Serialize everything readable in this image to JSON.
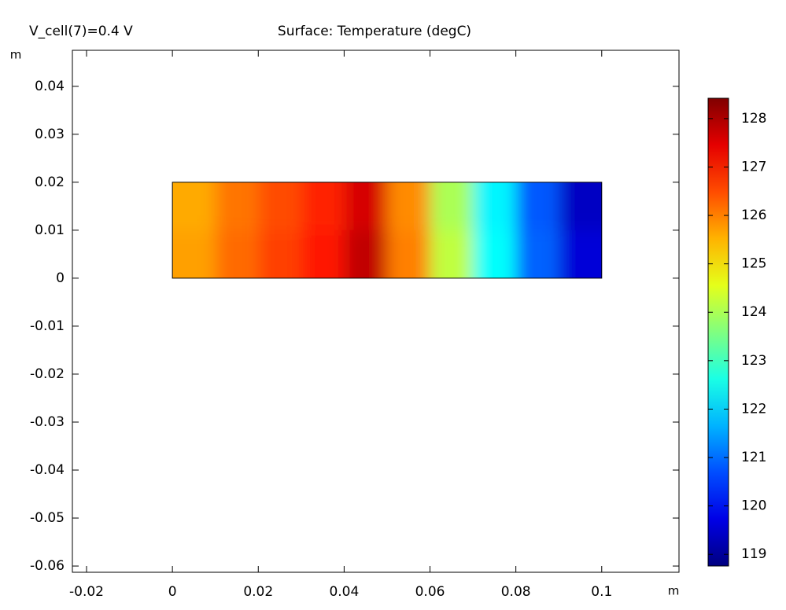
{
  "chart_data": {
    "type": "surface",
    "title": "Surface: Temperature (degC)",
    "subtitle": "V_cell(7)=0.4 V",
    "x_unit": "m",
    "y_unit": "m",
    "xlim": [
      -0.0233,
      0.118
    ],
    "xticks": [
      -0.02,
      0,
      0.02,
      0.04,
      0.06,
      0.08,
      0.1
    ],
    "ylim": [
      -0.0613,
      0.0475
    ],
    "yticks": [
      0.04,
      0.03,
      0.02,
      0.01,
      0,
      -0.01,
      -0.02,
      -0.03,
      -0.04,
      -0.05,
      -0.06
    ],
    "clim": [
      118.76,
      128.42
    ],
    "cticks": [
      119,
      120,
      121,
      122,
      123,
      124,
      125,
      126,
      127,
      128
    ],
    "domain": {
      "x": [
        0,
        0.1
      ],
      "y": [
        0,
        0.02
      ]
    },
    "surface": {
      "x": [
        0.005,
        0.015,
        0.025,
        0.035,
        0.045,
        0.055,
        0.065,
        0.075,
        0.085,
        0.095
      ],
      "y": [
        0.015,
        0.005
      ],
      "values": [
        [
          125.6,
          126.1,
          126.5,
          126.9,
          127.6,
          125.9,
          124.0,
          122.3,
          120.8,
          119.4
        ],
        [
          125.7,
          126.2,
          126.6,
          127.0,
          127.8,
          126.0,
          124.2,
          122.4,
          120.9,
          119.6
        ]
      ]
    }
  }
}
